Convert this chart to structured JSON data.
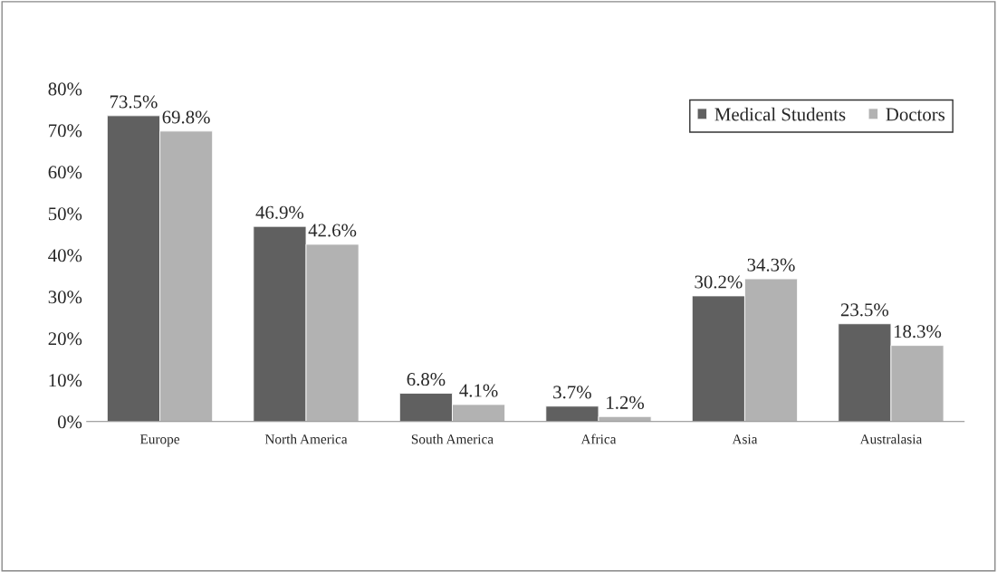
{
  "chart_data": {
    "type": "bar",
    "categories": [
      "Europe",
      "North America",
      "South America",
      "Africa",
      "Asia",
      "Australasia"
    ],
    "series": [
      {
        "name": "Medical Students",
        "color": "#606060",
        "values": [
          73.5,
          46.9,
          6.8,
          3.7,
          30.2,
          23.5
        ],
        "value_labels": [
          "73.5%",
          "46.9%",
          "6.8%",
          "3.7%",
          "30.2%",
          "23.5%"
        ]
      },
      {
        "name": "Doctors",
        "color": "#b2b2b2",
        "values": [
          69.8,
          42.6,
          4.1,
          1.2,
          34.3,
          18.3
        ],
        "value_labels": [
          "69.8%",
          "42.6%",
          "4.1%",
          "1.2%",
          "34.3%",
          "18.3%"
        ]
      }
    ],
    "ylim": [
      0,
      80
    ],
    "yticks": [
      {
        "value": 0,
        "label": "0%"
      },
      {
        "value": 10,
        "label": "10%"
      },
      {
        "value": 20,
        "label": "20%"
      },
      {
        "value": 30,
        "label": "30%"
      },
      {
        "value": 40,
        "label": "40%"
      },
      {
        "value": 50,
        "label": "50%"
      },
      {
        "value": 60,
        "label": "60%"
      },
      {
        "value": 70,
        "label": "70%"
      },
      {
        "value": 80,
        "label": "80%"
      }
    ],
    "grid": false,
    "legend": "top right"
  }
}
